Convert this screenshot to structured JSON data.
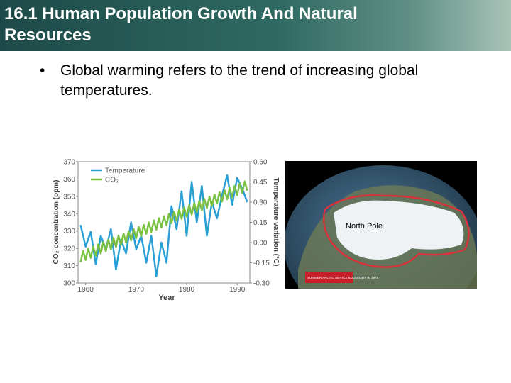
{
  "header": {
    "title_lines": [
      "16.1 Human Population Growth And Natural",
      "Resources"
    ]
  },
  "bullets": [
    "Global warming refers to the trend of increasing global temperatures."
  ],
  "chart_data": {
    "type": "line",
    "xlabel": "Year",
    "ylabel": "CO₂ concentration (ppm)",
    "y2label": "Temperature variation (°C)",
    "xlim": [
      1958.5,
      1992.5
    ],
    "xticks": [
      1960,
      1970,
      1980,
      1990
    ],
    "ylim": [
      300,
      370
    ],
    "yticks": [
      300,
      310,
      320,
      330,
      340,
      350,
      360,
      370
    ],
    "y2lim": [
      -0.3,
      0.6
    ],
    "y2ticks": [
      {
        "value": -0.3,
        "label": "-0.30"
      },
      {
        "value": -0.15,
        "label": "-0.15"
      },
      {
        "value": 0,
        "label": "0.00"
      },
      {
        "value": 0.15,
        "label": "0.15"
      },
      {
        "value": 0.3,
        "label": "0.30"
      },
      {
        "value": 0.45,
        "label": "0.45"
      },
      {
        "value": 0.6,
        "label": "0.60"
      }
    ],
    "legend": "upper left",
    "series": [
      {
        "name": "Temperature",
        "color": "#2a9fd6",
        "axis": "y2",
        "x": [
          1959,
          1960,
          1961,
          1962,
          1963,
          1964,
          1965,
          1966,
          1967,
          1968,
          1969,
          1970,
          1971,
          1972,
          1973,
          1974,
          1975,
          1976,
          1977,
          1978,
          1979,
          1980,
          1981,
          1982,
          1983,
          1984,
          1985,
          1986,
          1987,
          1988,
          1989,
          1990,
          1991,
          1992
        ],
        "values": [
          0.13,
          -0.03,
          0.08,
          -0.16,
          0.05,
          -0.05,
          0.1,
          -0.2,
          0.02,
          -0.08,
          0.15,
          -0.05,
          0.05,
          -0.15,
          0.05,
          -0.25,
          0,
          -0.15,
          0.27,
          0.1,
          0.38,
          0.05,
          0.45,
          0.15,
          0.42,
          0.05,
          0.3,
          0.18,
          0.35,
          0.5,
          0.28,
          0.48,
          0.4,
          0.3
        ]
      },
      {
        "name": "CO₂",
        "color": "#7ac143",
        "x": [
          1959,
          1959.5,
          1960,
          1960.5,
          1961,
          1961.5,
          1962,
          1962.5,
          1963,
          1963.5,
          1964,
          1964.5,
          1965,
          1965.5,
          1966,
          1966.5,
          1967,
          1967.5,
          1968,
          1968.5,
          1969,
          1969.5,
          1970,
          1970.5,
          1971,
          1971.5,
          1972,
          1972.5,
          1973,
          1973.5,
          1974,
          1974.5,
          1975,
          1975.5,
          1976,
          1976.5,
          1977,
          1977.5,
          1978,
          1978.5,
          1979,
          1979.5,
          1980,
          1980.5,
          1981,
          1981.5,
          1982,
          1982.5,
          1983,
          1983.5,
          1984,
          1984.5,
          1985,
          1985.5,
          1986,
          1986.5,
          1987,
          1987.5,
          1988,
          1988.5,
          1989,
          1989.5,
          1990,
          1990.5,
          1991,
          1991.5,
          1992
        ],
        "values": [
          312,
          318.6,
          313.3,
          319.9,
          314.5,
          321.1,
          315.8,
          322.4,
          317,
          323.6,
          318.3,
          324.9,
          319.5,
          326.1,
          320.8,
          327.4,
          322,
          328.6,
          323.3,
          329.9,
          324.5,
          331.1,
          325.8,
          332.4,
          327,
          333.6,
          328.3,
          334.9,
          329.5,
          336.1,
          330.8,
          337.4,
          332,
          338.6,
          333.3,
          339.9,
          334.5,
          341.1,
          335.8,
          342.4,
          337,
          343.6,
          338.3,
          344.9,
          339.5,
          346.1,
          340.8,
          347.4,
          342,
          348.6,
          343.3,
          349.9,
          344.5,
          351.1,
          345.8,
          352.4,
          347,
          353.6,
          348.3,
          354.9,
          349.5,
          356.1,
          350.8,
          357.4,
          352,
          358.6,
          353.3
        ]
      }
    ]
  },
  "image": {
    "label": "North Pole",
    "caption": "SUMMER ARCTIC SEA ICE BOUNDARY IN 1979"
  }
}
